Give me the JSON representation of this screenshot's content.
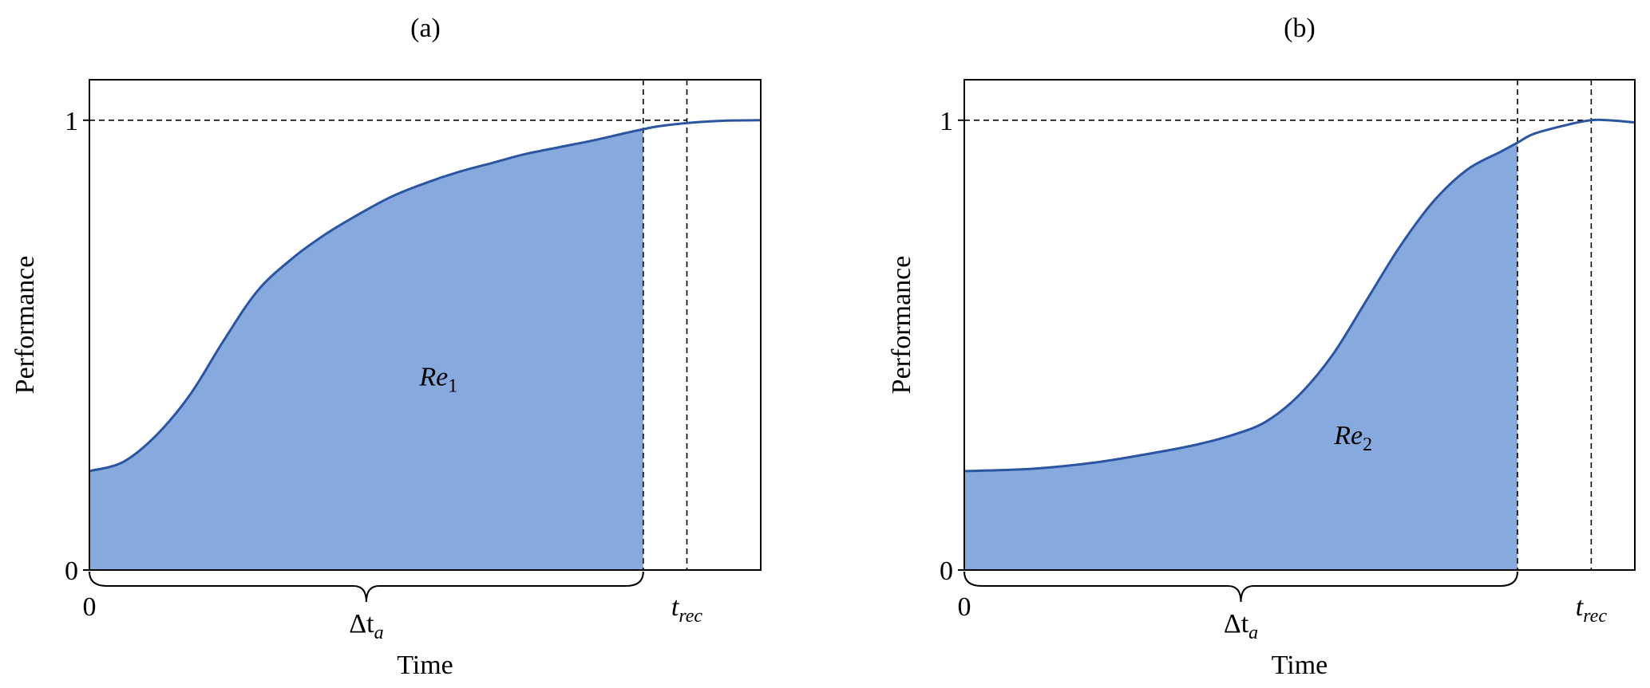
{
  "chart_data": [
    {
      "type": "area",
      "title": "(a)",
      "xlabel": "Time",
      "ylabel": "Performance",
      "ylim": [
        0,
        1.09
      ],
      "xlim": [
        0,
        1.0
      ],
      "ytick_labels": [
        "0",
        "1"
      ],
      "yticks": [
        0,
        1
      ],
      "x_tick_origin_label": "0",
      "t_rec": {
        "value": 0.89,
        "label": "t",
        "sub": "rec"
      },
      "delta_ta": {
        "value": 0.825,
        "label": "Δt",
        "sub": "a"
      },
      "region": {
        "label": "Re",
        "sub": "1",
        "at": [
          0.52,
          0.41
        ]
      },
      "reference_line": 1,
      "grid": false,
      "series": [
        {
          "x": [
            0,
            0.05,
            0.1,
            0.15,
            0.2,
            0.25,
            0.3,
            0.35,
            0.4,
            0.45,
            0.5,
            0.55,
            0.6,
            0.65,
            0.7,
            0.75,
            0.8,
            0.825,
            0.85,
            0.9,
            0.95,
            1.0
          ],
          "y": [
            0.22,
            0.24,
            0.3,
            0.39,
            0.51,
            0.62,
            0.69,
            0.745,
            0.79,
            0.83,
            0.86,
            0.885,
            0.905,
            0.925,
            0.94,
            0.955,
            0.972,
            0.98,
            0.987,
            0.995,
            0.999,
            1.0
          ]
        }
      ],
      "colors": {
        "line": "#2b55a0",
        "fill": "#86a9de"
      }
    },
    {
      "type": "area",
      "title": "(b)",
      "xlabel": "Time",
      "ylabel": "Performance",
      "ylim": [
        0,
        1.09
      ],
      "xlim": [
        0,
        1.0
      ],
      "ytick_labels": [
        "0",
        "1"
      ],
      "yticks": [
        0,
        1
      ],
      "x_tick_origin_label": "0",
      "t_rec": {
        "value": 0.935,
        "label": "t",
        "sub": "rec"
      },
      "delta_ta": {
        "value": 0.825,
        "label": "Δt",
        "sub": "a"
      },
      "region": {
        "label": "Re",
        "sub": "2",
        "at": [
          0.58,
          0.28
        ]
      },
      "reference_line": 1,
      "grid": false,
      "series": [
        {
          "x": [
            0,
            0.1,
            0.2,
            0.3,
            0.35,
            0.4,
            0.45,
            0.5,
            0.55,
            0.6,
            0.65,
            0.7,
            0.75,
            0.8,
            0.825,
            0.85,
            0.9,
            0.935,
            0.96,
            1.0
          ],
          "y": [
            0.22,
            0.225,
            0.24,
            0.265,
            0.28,
            0.3,
            0.33,
            0.39,
            0.48,
            0.6,
            0.72,
            0.82,
            0.89,
            0.93,
            0.95,
            0.97,
            0.99,
            1.0,
            1.0,
            0.995
          ]
        }
      ],
      "colors": {
        "line": "#2b55a0",
        "fill": "#86a9de"
      }
    }
  ]
}
